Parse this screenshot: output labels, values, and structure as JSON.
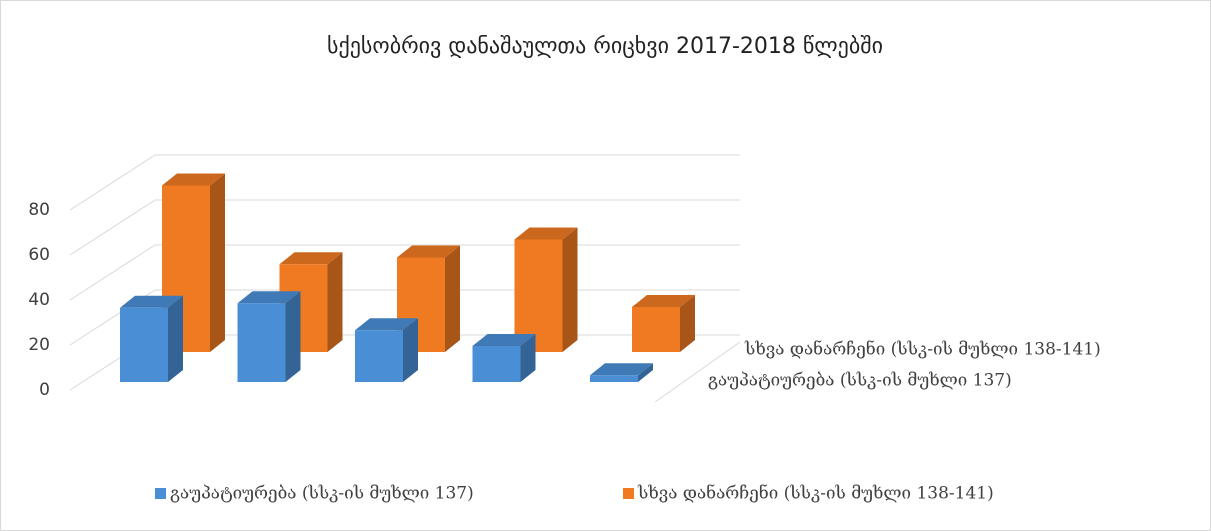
{
  "chart_data": {
    "type": "bar3d",
    "title": "სქესობრივ დანაშაულთა რიცხვი 2017-2018 წლებში",
    "categories": [
      null,
      null,
      null,
      null,
      null
    ],
    "series": [
      {
        "name": "გაუპატიურება (სსკ-ის მუხლი 137)",
        "color": "#4a8fd6",
        "values": [
          33,
          35,
          23,
          16,
          3
        ]
      },
      {
        "name": "სხვა დანარჩენი (სსკ-ის მუხლი 138-141)",
        "color": "#f07a22",
        "values": [
          74,
          39,
          42,
          50,
          20
        ]
      }
    ],
    "ylim": [
      0,
      80
    ],
    "yticks": [
      0,
      20,
      40,
      60,
      80
    ],
    "grid": true,
    "legend": "bottom"
  }
}
